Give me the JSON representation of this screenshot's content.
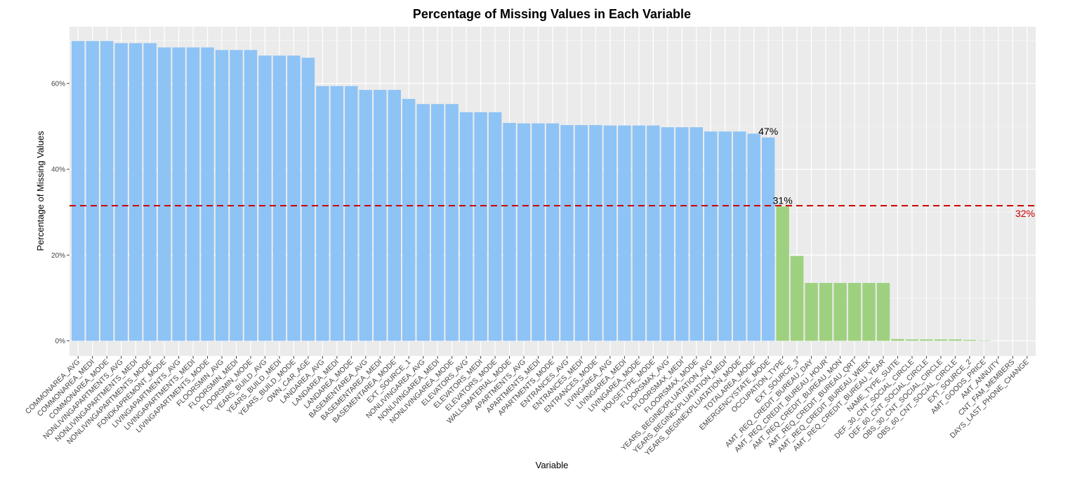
{
  "chart_data": {
    "type": "bar",
    "title": "Percentage of Missing Values in Each Variable",
    "xlabel": "Variable",
    "ylabel": "Percentage of Missing Values",
    "ylim": [
      0,
      72
    ],
    "yticks": [
      {
        "value": 0,
        "label": "0%"
      },
      {
        "value": 20,
        "label": "20%"
      },
      {
        "value": 40,
        "label": "40%"
      },
      {
        "value": 60,
        "label": "60%"
      }
    ],
    "grid": true,
    "colors": {
      "high": "#8ec3f5",
      "low": "#9ed17f",
      "panel": "#ebebeb",
      "grid_major": "#ffffff",
      "threshold": "#cc0000"
    },
    "categories": [
      "COMMONAREA_AVG",
      "COMMONAREA_MEDI",
      "COMMONAREA_MODE",
      "NONLIVINGAPARTMENTS_AVG",
      "NONLIVINGAPARTMENTS_MEDI",
      "NONLIVINGAPARTMENTS_MODE",
      "FONDKAPREMONT_MODE",
      "LIVINGAPARTMENTS_AVG",
      "LIVINGAPARTMENTS_MEDI",
      "LIVINGAPARTMENTS_MODE",
      "FLOORSMIN_AVG",
      "FLOORSMIN_MEDI",
      "FLOORSMIN_MODE",
      "YEARS_BUILD_AVG",
      "YEARS_BUILD_MEDI",
      "YEARS_BUILD_MODE",
      "OWN_CAR_AGE",
      "LANDAREA_AVG",
      "LANDAREA_MEDI",
      "LANDAREA_MODE",
      "BASEMENTAREA_AVG",
      "BASEMENTAREA_MEDI",
      "BASEMENTAREA_MODE",
      "EXT_SOURCE_1",
      "NONLIVINGAREA_AVG",
      "NONLIVINGAREA_MEDI",
      "NONLIVINGAREA_MODE",
      "ELEVATORS_AVG",
      "ELEVATORS_MEDI",
      "ELEVATORS_MODE",
      "WALLSMATERIAL_MODE",
      "APARTMENTS_AVG",
      "APARTMENTS_MEDI",
      "APARTMENTS_MODE",
      "ENTRANCES_AVG",
      "ENTRANCES_MEDI",
      "ENTRANCES_MODE",
      "LIVINGAREA_AVG",
      "LIVINGAREA_MEDI",
      "LIVINGAREA_MODE",
      "HOUSETYPE_MODE",
      "FLOORSMAX_AVG",
      "FLOORSMAX_MEDI",
      "FLOORSMAX_MODE",
      "YEARS_BEGINEXPLUATATION_AVG",
      "YEARS_BEGINEXPLUATATION_MEDI",
      "YEARS_BEGINEXPLUATATION_MODE",
      "TOTALAREA_MODE",
      "EMERGENCYSTATE_MODE",
      "OCCUPATION_TYPE",
      "EXT_SOURCE_3",
      "AMT_REQ_CREDIT_BUREAU_DAY",
      "AMT_REQ_CREDIT_BUREAU_HOUR",
      "AMT_REQ_CREDIT_BUREAU_MON",
      "AMT_REQ_CREDIT_BUREAU_QRT",
      "AMT_REQ_CREDIT_BUREAU_WEEK",
      "AMT_REQ_CREDIT_BUREAU_YEAR",
      "NAME_TYPE_SUITE",
      "DEF_30_CNT_SOCIAL_CIRCLE",
      "DEF_60_CNT_SOCIAL_CIRCLE",
      "OBS_30_CNT_SOCIAL_CIRCLE",
      "OBS_60_CNT_SOCIAL_CIRCLE",
      "EXT_SOURCE_2",
      "AMT_GOODS_PRICE",
      "AMT_ANNUITY",
      "CNT_FAM_MEMBERS",
      "DAYS_LAST_PHONE_CHANGE"
    ],
    "values": [
      69.9,
      69.9,
      69.9,
      69.4,
      69.4,
      69.4,
      68.4,
      68.4,
      68.4,
      68.4,
      67.8,
      67.8,
      67.8,
      66.5,
      66.5,
      66.5,
      66.0,
      59.4,
      59.4,
      59.4,
      58.5,
      58.5,
      58.5,
      56.4,
      55.2,
      55.2,
      55.2,
      53.3,
      53.3,
      53.3,
      50.8,
      50.7,
      50.7,
      50.7,
      50.3,
      50.3,
      50.3,
      50.2,
      50.2,
      50.2,
      50.2,
      49.8,
      49.8,
      49.8,
      48.8,
      48.8,
      48.8,
      48.3,
      47.4,
      31.3,
      19.8,
      13.5,
      13.5,
      13.5,
      13.5,
      13.5,
      13.5,
      0.42,
      0.33,
      0.33,
      0.33,
      0.33,
      0.21,
      0.09,
      0.004,
      0.001,
      0.0003
    ],
    "high_count": 49,
    "threshold": {
      "value": 31.5,
      "label": "32%",
      "style": "dashed"
    },
    "annotations": [
      {
        "index": 48,
        "label": "47%"
      },
      {
        "index": 49,
        "label": "31%"
      }
    ]
  }
}
